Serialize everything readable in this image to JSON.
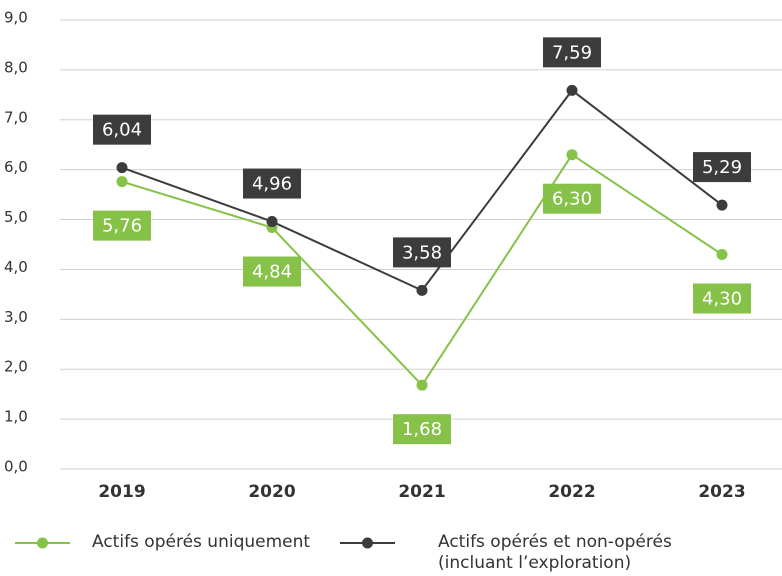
{
  "chart_data": {
    "type": "line",
    "categories": [
      "2019",
      "2020",
      "2021",
      "2022",
      "2023"
    ],
    "series": [
      {
        "name": "Actifs opérés uniquement",
        "color": "#86c148",
        "values": [
          5.76,
          4.84,
          1.68,
          6.3,
          4.3
        ],
        "value_labels": [
          "5,76",
          "4,84",
          "1,68",
          "6,30",
          "4,30"
        ]
      },
      {
        "name": "Actifs opérés et non-opérés (incluant l’exploration)",
        "color": "#3c3c3c",
        "values": [
          6.04,
          4.96,
          3.58,
          7.59,
          5.29
        ],
        "value_labels": [
          "6,04",
          "4,96",
          "3,58",
          "7,59",
          "5,29"
        ]
      }
    ],
    "ylim": [
      0,
      9
    ],
    "yticks": [
      {
        "value": 0,
        "label": "0,0"
      },
      {
        "value": 1,
        "label": "1,0"
      },
      {
        "value": 2,
        "label": "2,0"
      },
      {
        "value": 3,
        "label": "3,0"
      },
      {
        "value": 4,
        "label": "4,0"
      },
      {
        "value": 5,
        "label": "5,0"
      },
      {
        "value": 6,
        "label": "6,0"
      },
      {
        "value": 7,
        "label": "7,0"
      },
      {
        "value": 8,
        "label": "8,0"
      },
      {
        "value": 9,
        "label": "9,0"
      }
    ],
    "grid": true
  }
}
